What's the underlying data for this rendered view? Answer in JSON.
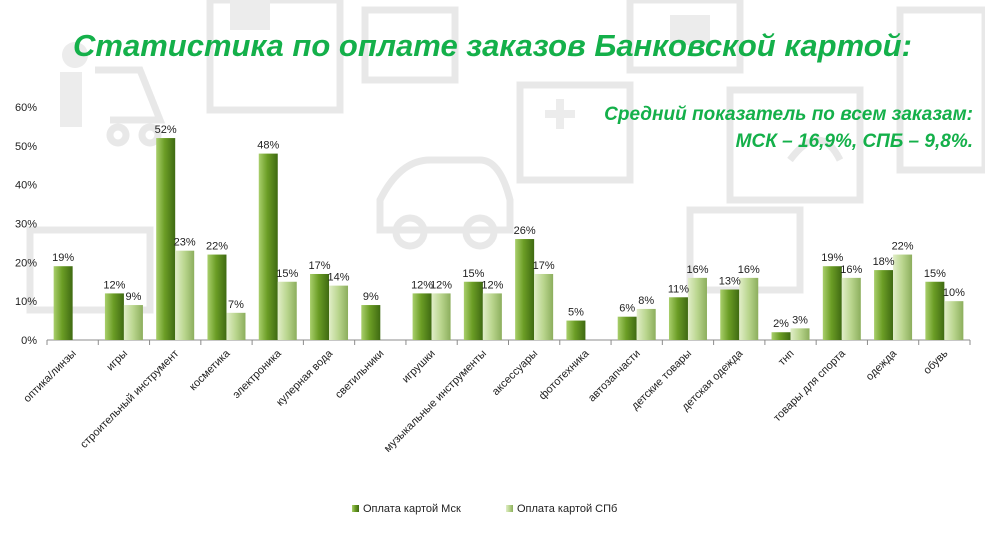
{
  "title": "Статистика по оплате заказов Банковской картой:",
  "note": {
    "line1": "Средний показатель по всем заказам:",
    "line2": "МСК – 16,9%, СПБ – 9,8%."
  },
  "colors": {
    "title": "#14b04a",
    "msk": "#5e8e1e",
    "spb": "#b6d38a"
  },
  "chart_data": {
    "type": "bar",
    "categories": [
      "оптика/линзы",
      "игры",
      "строительный инструмент",
      "косметика",
      "электроника",
      "кулерная вода",
      "светильники",
      "игрушки",
      "музыкальные инструменты",
      "аксессуары",
      "фототехника",
      "автозапчасти",
      "детские товары",
      "детская одежда",
      "тнп",
      "товары для спорта",
      "одежда",
      "обувь"
    ],
    "series": [
      {
        "name": "Оплата картой Мск",
        "values": [
          19,
          12,
          52,
          22,
          48,
          17,
          9,
          12,
          15,
          26,
          5,
          6,
          11,
          13,
          2,
          19,
          18,
          15
        ],
        "labels": [
          "19%",
          "12%",
          "52%",
          "22%",
          "48%",
          "17%",
          "9%",
          "12%",
          "15%",
          "26%",
          "5%",
          "6%",
          "11%",
          "13%",
          "2%",
          "19%",
          "18%",
          "15%"
        ]
      },
      {
        "name": "Оплата картой СПб",
        "values": [
          null,
          9,
          23,
          7,
          15,
          14,
          null,
          12,
          12,
          17,
          null,
          8,
          16,
          16,
          3,
          16,
          22,
          10
        ],
        "labels": [
          "",
          "9%",
          "23%",
          "7%",
          "15%",
          "14%",
          "",
          "12%",
          "12%",
          "17%",
          "",
          "8%",
          "16%",
          "16%",
          "3%",
          "16%",
          "22%",
          "10%"
        ]
      }
    ],
    "yticks": [
      "0%",
      "10%",
      "20%",
      "30%",
      "40%",
      "50%",
      "60%"
    ],
    "ylim": [
      0,
      60
    ],
    "grid": false,
    "legend_position": "bottom"
  }
}
